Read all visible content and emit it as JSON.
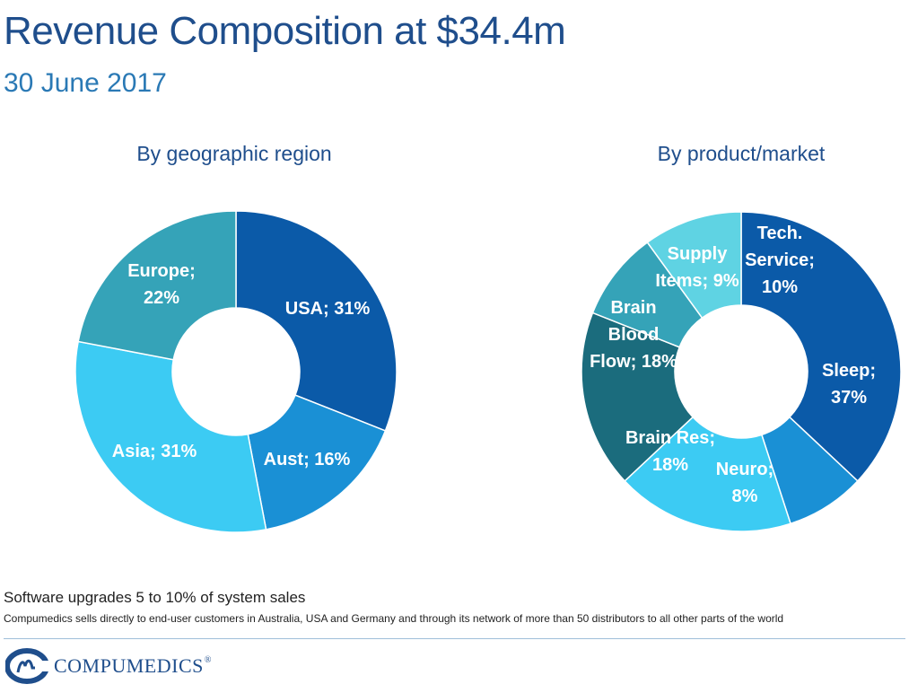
{
  "header": {
    "title": "Revenue Composition at $34.4m",
    "subtitle": "30 June 2017"
  },
  "chart_data": [
    {
      "type": "pie",
      "title": "By geographic region",
      "slices": [
        {
          "label": [
            "USA; 31%"
          ],
          "name": "USA",
          "value": 31,
          "color": "#0b5aa8"
        },
        {
          "label": [
            "Aust; 16%"
          ],
          "name": "Aust",
          "value": 16,
          "color": "#1a90d5"
        },
        {
          "label": [
            "Asia; 31%"
          ],
          "name": "Asia",
          "value": 31,
          "color": "#3ccbf3"
        },
        {
          "label": [
            "Europe;",
            "22%"
          ],
          "name": "Europe",
          "value": 22,
          "color": "#35a3b8"
        }
      ]
    },
    {
      "type": "pie",
      "title": "By product/market",
      "slices": [
        {
          "label": [
            "Sleep;",
            "37%"
          ],
          "name": "Sleep",
          "value": 37,
          "color": "#0b5aa8"
        },
        {
          "label": [
            "Neuro;",
            "8%"
          ],
          "name": "Neuro",
          "value": 8,
          "color": "#1a90d5"
        },
        {
          "label": [
            "Brain Res;",
            "18%"
          ],
          "name": "Brain Res",
          "value": 18,
          "color": "#3ccbf3"
        },
        {
          "label": [
            "Brain",
            "Blood",
            "Flow; 18%"
          ],
          "name": "Brain Blood Flow",
          "value": 18,
          "color": "#1b6c7d"
        },
        {
          "label": [
            "Supply",
            "Items; 9%"
          ],
          "name": "Supply Items",
          "value": 9,
          "color": "#35a3b8"
        },
        {
          "label": [
            "Tech.",
            "Service;",
            "10%"
          ],
          "name": "Tech. Service",
          "value": 10,
          "color": "#5fd3e3"
        }
      ]
    }
  ],
  "notes": {
    "main": "Software upgrades 5 to 10% of system sales",
    "detail": "Compumedics sells directly to end-user customers in Australia, USA and Germany and through its network of more than 50 distributors to all other parts of the world"
  },
  "logo": {
    "text": "COMPUMEDICS",
    "mark": "®",
    "icon": "compumedics-logo-icon",
    "color": "#1f4e8c"
  }
}
